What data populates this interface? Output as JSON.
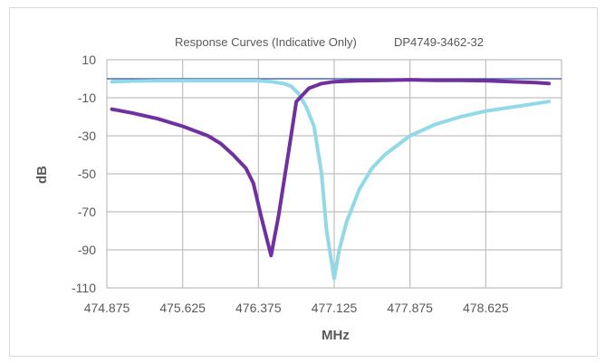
{
  "chart_data": {
    "type": "line",
    "title": "Response Curves (Indicative Only)",
    "subtitle": "DP4749-3462-32",
    "xlabel": "MHz",
    "ylabel": "dB",
    "xlim": [
      474.875,
      479.375
    ],
    "ylim": [
      -110,
      10
    ],
    "x_ticks": [
      "474.875",
      "475.625",
      "476.375",
      "477.125",
      "477.875",
      "478.625"
    ],
    "y_ticks": [
      "10",
      "-10",
      "-30",
      "-50",
      "-70",
      "-90",
      "-110"
    ],
    "grid": true,
    "reference_line_y": 0,
    "series": [
      {
        "color": "#7030a0",
        "x": [
          474.925,
          475.125,
          475.375,
          475.625,
          475.875,
          476.0,
          476.125,
          476.25,
          476.325,
          476.4,
          476.5,
          476.575,
          476.675,
          476.75,
          476.875,
          477.0,
          477.125,
          477.375,
          477.625,
          477.875,
          478.125,
          478.375,
          478.625,
          478.875,
          479.125,
          479.25
        ],
        "y": [
          -16,
          -18,
          -21,
          -25,
          -30,
          -34,
          -40,
          -47,
          -55,
          -72,
          -93,
          -72,
          -38,
          -12,
          -5,
          -2.5,
          -1.5,
          -1,
          -0.8,
          -0.5,
          -0.8,
          -0.8,
          -1,
          -1.5,
          -2,
          -2.5
        ]
      },
      {
        "color": "#92d9e8",
        "x": [
          474.925,
          475.125,
          475.375,
          475.625,
          475.875,
          476.125,
          476.375,
          476.5,
          476.625,
          476.7,
          476.775,
          476.85,
          476.925,
          477.0,
          477.05,
          477.125,
          477.175,
          477.25,
          477.375,
          477.5,
          477.625,
          477.75,
          477.875,
          478.125,
          478.375,
          478.625,
          478.875,
          479.125,
          479.25
        ],
        "y": [
          -1.5,
          -1.2,
          -1,
          -1,
          -1,
          -1,
          -1,
          -1.5,
          -2.5,
          -4,
          -8,
          -15,
          -25,
          -50,
          -80,
          -105,
          -90,
          -75,
          -58,
          -47,
          -40,
          -35,
          -30,
          -24,
          -20,
          -17,
          -15,
          -13,
          -12
        ]
      }
    ]
  }
}
